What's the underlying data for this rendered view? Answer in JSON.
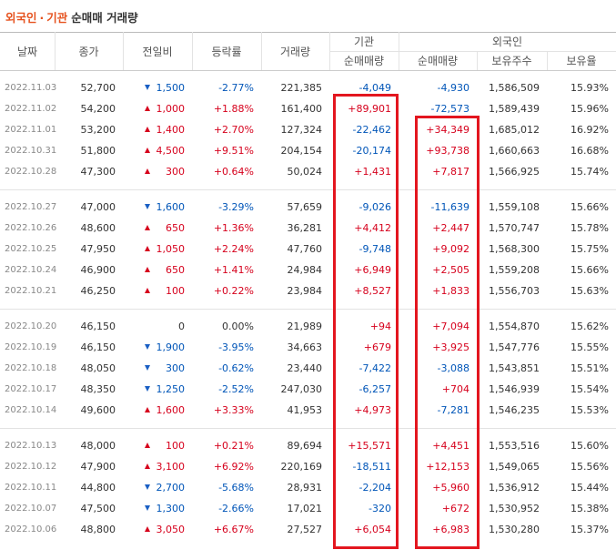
{
  "header": {
    "title": {
      "foreign": "외국인",
      "dot": "·",
      "inst": "기관",
      "rest": "순매매 거래량"
    }
  },
  "table": {
    "columns": [
      "날짜",
      "종가",
      "전일비",
      "등락률",
      "거래량"
    ],
    "groups_header": [
      {
        "label": "기관",
        "sub": [
          "순매매량"
        ]
      },
      {
        "label": "외국인",
        "sub": [
          "순매매량",
          "보유주수",
          "보유율"
        ]
      }
    ],
    "groups": [
      [
        {
          "dir": "down",
          "cells": [
            "2022.11.03",
            "52,700",
            "1,500",
            "-2.77%",
            "221,385",
            "-4,049",
            "-4,930",
            "1,586,509",
            "15.93%"
          ]
        },
        {
          "dir": "up",
          "cells": [
            "2022.11.02",
            "54,200",
            "1,000",
            "+1.88%",
            "161,400",
            "+89,901",
            "-72,573",
            "1,589,439",
            "15.96%"
          ]
        },
        {
          "dir": "up",
          "cells": [
            "2022.11.01",
            "53,200",
            "1,400",
            "+2.70%",
            "127,324",
            "-22,462",
            "+34,349",
            "1,685,012",
            "16.92%"
          ]
        },
        {
          "dir": "up",
          "cells": [
            "2022.10.31",
            "51,800",
            "4,500",
            "+9.51%",
            "204,154",
            "-20,174",
            "+93,738",
            "1,660,663",
            "16.68%"
          ]
        },
        {
          "dir": "up",
          "cells": [
            "2022.10.28",
            "47,300",
            "300",
            "+0.64%",
            "50,024",
            "+1,431",
            "+7,817",
            "1,566,925",
            "15.74%"
          ]
        }
      ],
      [
        {
          "dir": "down",
          "cells": [
            "2022.10.27",
            "47,000",
            "1,600",
            "-3.29%",
            "57,659",
            "-9,026",
            "-11,639",
            "1,559,108",
            "15.66%"
          ]
        },
        {
          "dir": "up",
          "cells": [
            "2022.10.26",
            "48,600",
            "650",
            "+1.36%",
            "36,281",
            "+4,412",
            "+2,447",
            "1,570,747",
            "15.78%"
          ]
        },
        {
          "dir": "up",
          "cells": [
            "2022.10.25",
            "47,950",
            "1,050",
            "+2.24%",
            "47,760",
            "-9,748",
            "+9,092",
            "1,568,300",
            "15.75%"
          ]
        },
        {
          "dir": "up",
          "cells": [
            "2022.10.24",
            "46,900",
            "650",
            "+1.41%",
            "24,984",
            "+6,949",
            "+2,505",
            "1,559,208",
            "15.66%"
          ]
        },
        {
          "dir": "up",
          "cells": [
            "2022.10.21",
            "46,250",
            "100",
            "+0.22%",
            "23,984",
            "+8,527",
            "+1,833",
            "1,556,703",
            "15.63%"
          ]
        }
      ],
      [
        {
          "dir": "none",
          "cells": [
            "2022.10.20",
            "46,150",
            "0",
            "0.00%",
            "21,989",
            "+94",
            "+7,094",
            "1,554,870",
            "15.62%"
          ]
        },
        {
          "dir": "down",
          "cells": [
            "2022.10.19",
            "46,150",
            "1,900",
            "-3.95%",
            "34,663",
            "+679",
            "+3,925",
            "1,547,776",
            "15.55%"
          ]
        },
        {
          "dir": "down",
          "cells": [
            "2022.10.18",
            "48,050",
            "300",
            "-0.62%",
            "23,440",
            "-7,422",
            "-3,088",
            "1,543,851",
            "15.51%"
          ]
        },
        {
          "dir": "down",
          "cells": [
            "2022.10.17",
            "48,350",
            "1,250",
            "-2.52%",
            "247,030",
            "-6,257",
            "+704",
            "1,546,939",
            "15.54%"
          ]
        },
        {
          "dir": "up",
          "cells": [
            "2022.10.14",
            "49,600",
            "1,600",
            "+3.33%",
            "41,953",
            "+4,973",
            "-7,281",
            "1,546,235",
            "15.53%"
          ]
        }
      ],
      [
        {
          "dir": "up",
          "cells": [
            "2022.10.13",
            "48,000",
            "100",
            "+0.21%",
            "89,694",
            "+15,571",
            "+4,451",
            "1,553,516",
            "15.60%"
          ]
        },
        {
          "dir": "up",
          "cells": [
            "2022.10.12",
            "47,900",
            "3,100",
            "+6.92%",
            "220,169",
            "-18,511",
            "+12,153",
            "1,549,065",
            "15.56%"
          ]
        },
        {
          "dir": "down",
          "cells": [
            "2022.10.11",
            "44,800",
            "2,700",
            "-5.68%",
            "28,931",
            "-2,204",
            "+5,960",
            "1,536,912",
            "15.44%"
          ]
        },
        {
          "dir": "down",
          "cells": [
            "2022.10.07",
            "47,500",
            "1,300",
            "-2.66%",
            "17,021",
            "-320",
            "+672",
            "1,530,952",
            "15.38%"
          ]
        },
        {
          "dir": "up",
          "cells": [
            "2022.10.06",
            "48,800",
            "3,050",
            "+6.67%",
            "27,527",
            "+6,054",
            "+6,983",
            "1,530,280",
            "15.37%"
          ]
        }
      ]
    ]
  }
}
